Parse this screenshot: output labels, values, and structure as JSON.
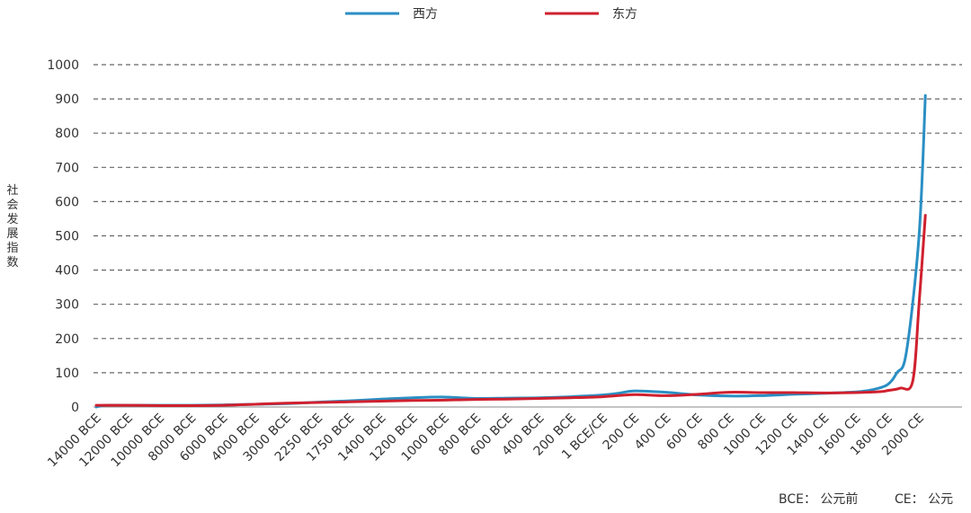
{
  "chart_data": {
    "type": "line",
    "title": "",
    "xlabel": "",
    "ylabel": "社会发展指数",
    "ylim": [
      0,
      1000
    ],
    "yticks": [
      0,
      100,
      200,
      300,
      400,
      500,
      600,
      700,
      800,
      900,
      1000
    ],
    "grid": "horizontal dashed",
    "legend_position": "top",
    "categories": [
      "14000 BCE",
      "12000 BCE",
      "10000 BCE",
      "8000 BCE",
      "6000 BCE",
      "4000 BCE",
      "3000 BCE",
      "2250 BCE",
      "1750 BCE",
      "1400 BCE",
      "1200 BCE",
      "1000 BCE",
      "800 BCE",
      "600 BCE",
      "400 BCE",
      "200 BCE",
      "1 BCE/CE",
      "200 CE",
      "400 CE",
      "600 CE",
      "800 CE",
      "1000 CE",
      "1200 CE",
      "1400 CE",
      "1600 CE",
      "1800 CE",
      "2000 CE"
    ],
    "series": [
      {
        "name": "西方",
        "color": "#2a8fc4",
        "x": [
          0,
          0.3,
          1,
          2,
          3,
          4,
          5,
          6,
          7,
          8,
          9,
          10,
          11,
          12,
          13,
          14,
          15,
          16,
          16.5,
          17,
          18,
          19,
          20,
          21,
          22,
          23,
          24,
          24.5,
          25,
          25.3,
          25.6,
          26,
          26.2
        ],
        "values": [
          0,
          5,
          5,
          5,
          5,
          6,
          8,
          10,
          14,
          18,
          23,
          27,
          29,
          25,
          26,
          27,
          30,
          35,
          40,
          47,
          43,
          35,
          32,
          33,
          37,
          40,
          44,
          50,
          65,
          100,
          160,
          500,
          910
        ]
      },
      {
        "name": "东方",
        "color": "#d0202e",
        "x": [
          0,
          1,
          2,
          3,
          4,
          5,
          6,
          7,
          8,
          9,
          10,
          11,
          12,
          13,
          14,
          15,
          16,
          17,
          18,
          19,
          20,
          21,
          22,
          23,
          24,
          24.8,
          25,
          25.4,
          25.8,
          26,
          26.2
        ],
        "values": [
          5,
          5,
          4,
          4,
          5,
          8,
          11,
          13,
          15,
          17,
          19,
          20,
          22,
          23,
          25,
          27,
          30,
          36,
          33,
          37,
          43,
          42,
          42,
          41,
          42,
          45,
          48,
          55,
          75,
          300,
          560
        ]
      }
    ],
    "notes": [
      "BCE： 公元前",
      "CE： 公元"
    ]
  }
}
